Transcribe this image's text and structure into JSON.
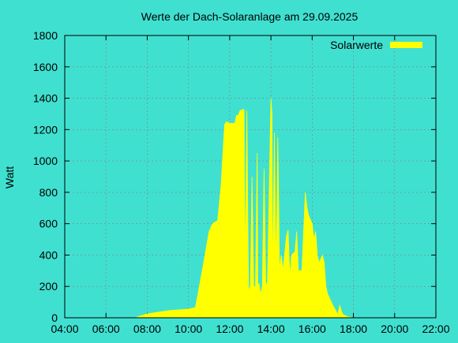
{
  "chart_data": {
    "type": "area",
    "title": "Werte der Dach-Solaranlage am 29.09.2025",
    "ylabel": "Watt",
    "xlabel": "",
    "xlim": [
      "04:00",
      "22:00"
    ],
    "ylim": [
      0,
      1800
    ],
    "x_ticks": [
      "04:00",
      "06:00",
      "08:00",
      "10:00",
      "12:00",
      "14:00",
      "16:00",
      "18:00",
      "20:00",
      "22:00"
    ],
    "y_ticks": [
      "0",
      "200",
      "400",
      "600",
      "800",
      "1000",
      "1200",
      "1400",
      "1600",
      "1800"
    ],
    "grid": true,
    "legend_position": "top-right",
    "series": [
      {
        "name": "Solarwerte",
        "color": "#ffff00",
        "x": [
          "07:30",
          "08:00",
          "08:30",
          "09:00",
          "09:30",
          "10:00",
          "10:20",
          "10:25",
          "10:40",
          "11:00",
          "11:10",
          "11:25",
          "11:35",
          "11:45",
          "11:50",
          "12:00",
          "12:15",
          "12:20",
          "12:25",
          "12:30",
          "12:40",
          "12:42",
          "12:44",
          "12:50",
          "12:55",
          "13:00",
          "13:05",
          "13:10",
          "13:15",
          "13:20",
          "13:22",
          "13:25",
          "13:30",
          "13:35",
          "13:40",
          "13:45",
          "13:50",
          "14:00",
          "14:03",
          "14:05",
          "14:10",
          "14:15",
          "14:20",
          "14:25",
          "14:30",
          "14:35",
          "14:45",
          "14:50",
          "14:55",
          "15:00",
          "15:10",
          "15:15",
          "15:20",
          "15:30",
          "15:40",
          "15:45",
          "15:50",
          "16:00",
          "16:05",
          "16:10",
          "16:15",
          "16:20",
          "16:30",
          "16:35",
          "16:40",
          "16:45",
          "17:00",
          "17:10",
          "17:15",
          "17:20",
          "17:25",
          "17:30",
          "17:40",
          "17:45",
          "17:50",
          "17:55",
          "18:00",
          "18:10",
          "18:20",
          "18:25"
        ],
        "y": [
          5,
          25,
          35,
          45,
          50,
          55,
          65,
          120,
          300,
          550,
          600,
          620,
          850,
          1230,
          1250,
          1240,
          1240,
          1290,
          1290,
          1320,
          1330,
          1320,
          300,
          1320,
          170,
          200,
          900,
          200,
          200,
          1050,
          200,
          220,
          150,
          200,
          950,
          200,
          230,
          1400,
          1300,
          200,
          1180,
          300,
          1150,
          300,
          400,
          300,
          520,
          560,
          260,
          400,
          420,
          550,
          300,
          300,
          800,
          700,
          650,
          600,
          500,
          550,
          400,
          350,
          400,
          350,
          200,
          150,
          80,
          40,
          20,
          80,
          40,
          20,
          10,
          5,
          5,
          2,
          0,
          0,
          0,
          0
        ]
      }
    ]
  }
}
